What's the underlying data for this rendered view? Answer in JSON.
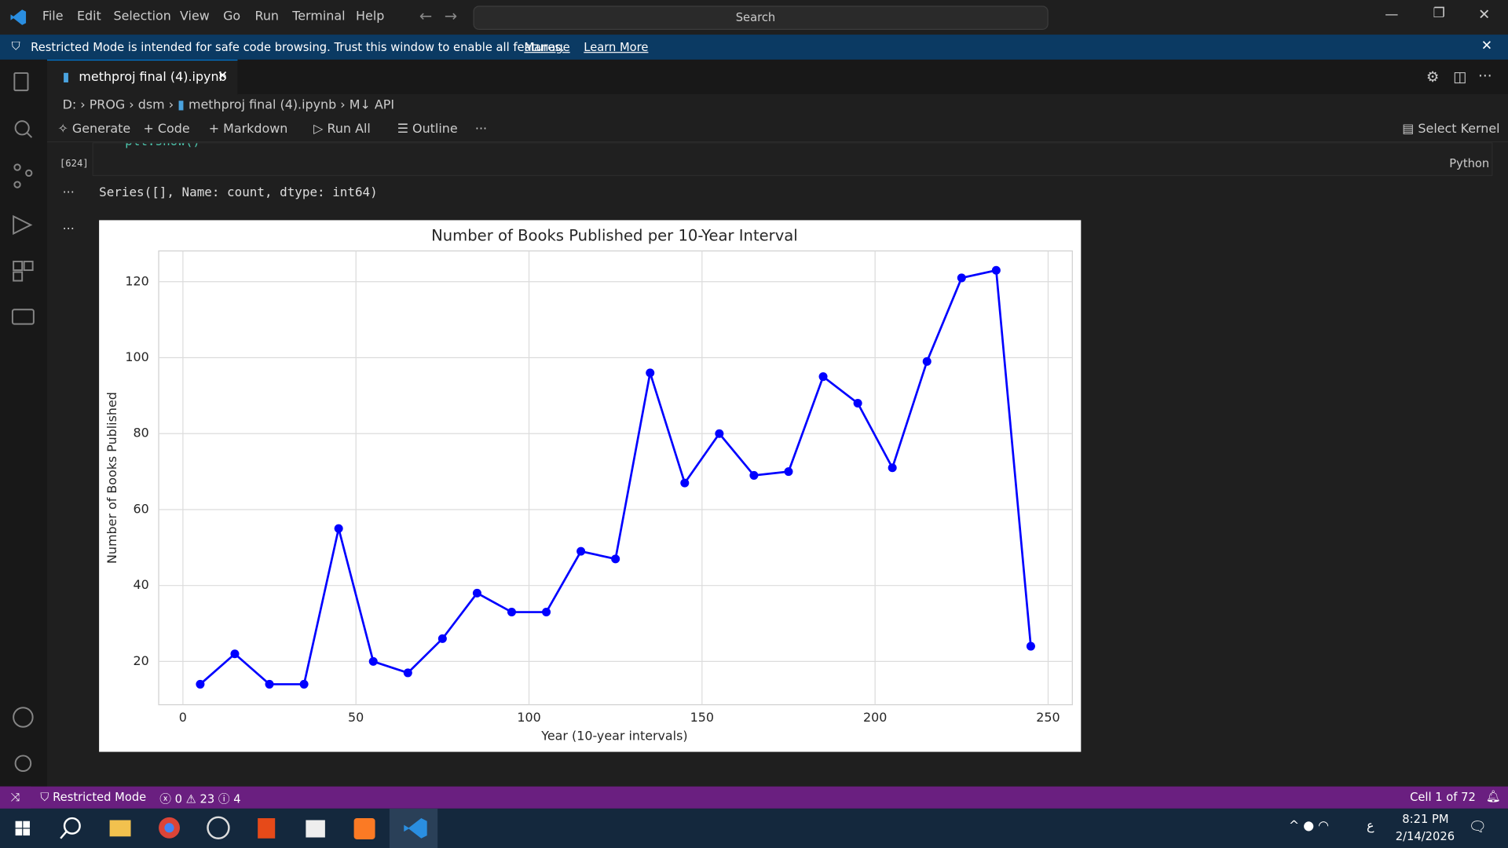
{
  "menu": [
    "File",
    "Edit",
    "Selection",
    "View",
    "Go",
    "Run",
    "Terminal",
    "Help"
  ],
  "search": "Search",
  "banner": {
    "message": "Restricted Mode is intended for safe code browsing. Trust this window to enable all features.",
    "manage": "Manage",
    "learn_more": "Learn More"
  },
  "tab": "methproj final (4).ipynb",
  "breadcrumb": [
    "D:",
    "PROG",
    "dsm",
    "methproj final (4).ipynb",
    "API"
  ],
  "toolbar": [
    "Generate",
    "Code",
    "Markdown",
    "Run All",
    "Outline"
  ],
  "kernel": "Select Kernel",
  "cell": {
    "code": "plt.show()",
    "execution_count": "[624]",
    "language": "Python",
    "output": "Series([], Name: count, dtype: int64)"
  },
  "chart_data": {
    "type": "line",
    "title": "Number of Books Published per 10-Year Interval",
    "x_label": "Year (10-year intervals)",
    "y_label": "Number of Books Published",
    "x": [
      5,
      15,
      25,
      35,
      45,
      55,
      65,
      75,
      85,
      95,
      105,
      115,
      125,
      135,
      145,
      155,
      165,
      175,
      185,
      195,
      205,
      215,
      225,
      235,
      245
    ],
    "values": [
      14,
      22,
      14,
      14,
      55,
      20,
      17,
      26,
      38,
      33,
      33,
      49,
      47,
      96,
      67,
      80,
      69,
      70,
      95,
      88,
      71,
      99,
      121,
      123,
      24
    ],
    "color": "#0000ff",
    "markers": true,
    "grid": true,
    "xlim": [
      -7,
      257
    ],
    "ylim": [
      8.6,
      128.1
    ],
    "xticks": [
      0,
      50,
      100,
      150,
      200,
      250
    ],
    "yticks": [
      20,
      40,
      60,
      80,
      100,
      120
    ]
  },
  "status": {
    "mode": "Restricted Mode",
    "errors": "0",
    "warnings": "23",
    "infos": "4",
    "cell": "Cell 1 of 72"
  },
  "taskbar": {
    "lang": "ع",
    "time": "8:21 PM",
    "date": "2/14/2026"
  }
}
